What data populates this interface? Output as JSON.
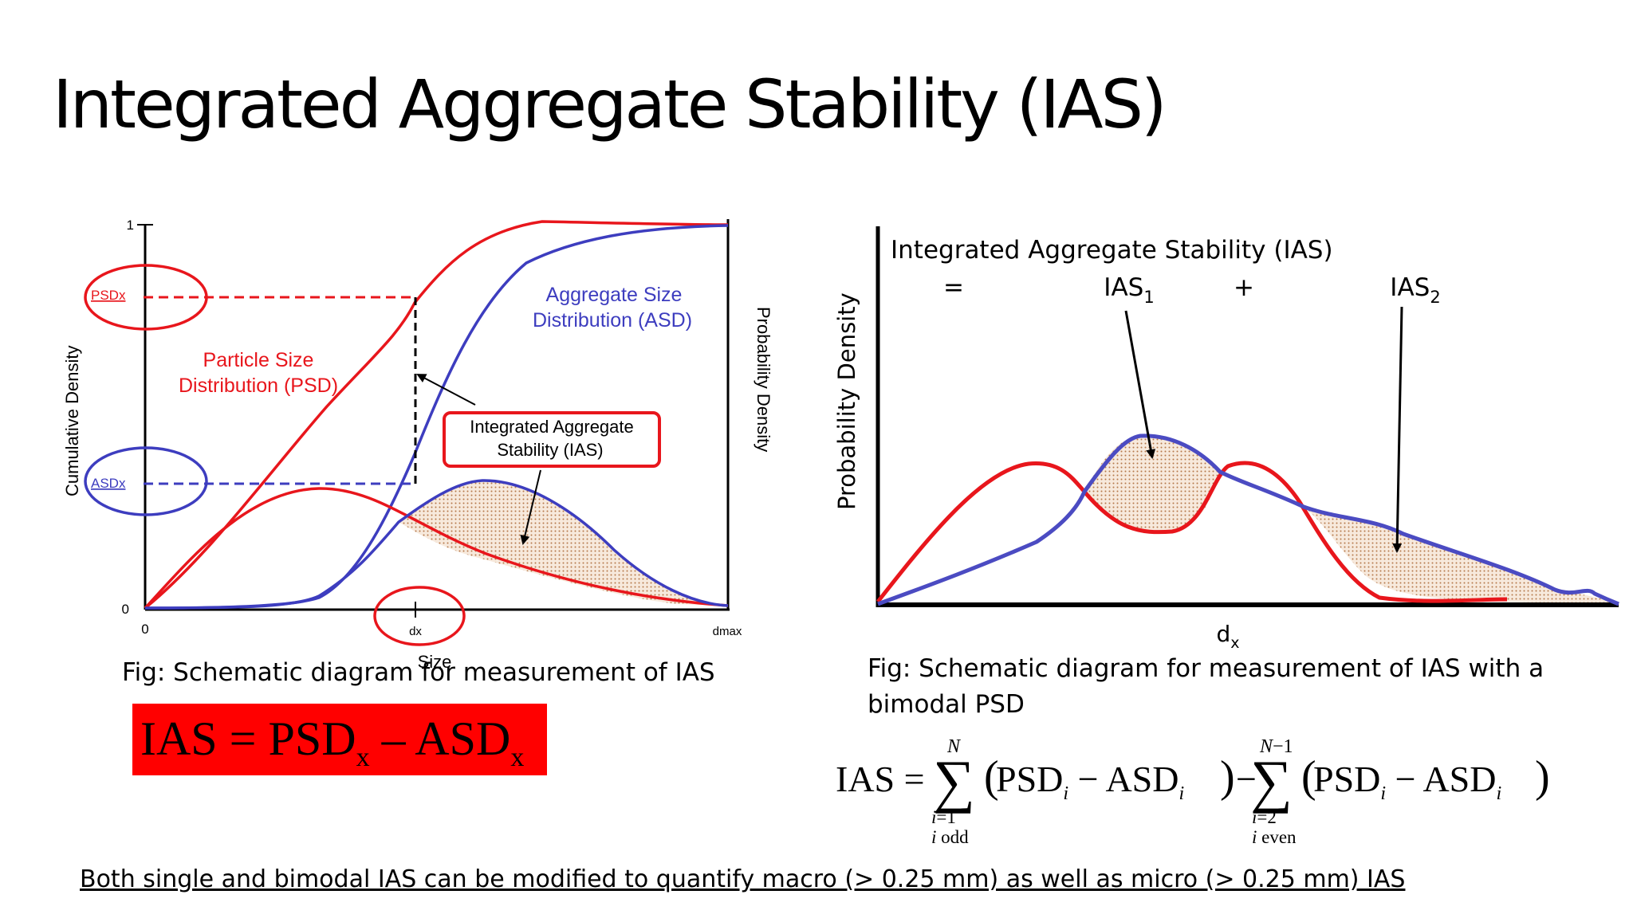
{
  "title": "Integrated Aggregate Stability (IAS)",
  "left_figure": {
    "y_label": "Cumulative Density",
    "y2_label": "Probability Density",
    "x_label": "Size",
    "y_ticks": [
      "1",
      "0"
    ],
    "x_ticks": [
      "0",
      "dx",
      "dmax"
    ],
    "psd_marker": "PSDx",
    "asd_marker": "ASDx",
    "psd_label_line1": "Particle Size",
    "psd_label_line2": "Distribution (PSD)",
    "asd_label_line1": "Aggregate Size",
    "asd_label_line2": "Distribution (ASD)",
    "ias_label_line1": "Integrated Aggregate",
    "ias_label_line2": "Stability (IAS)",
    "caption": "Fig: Schematic diagram for measurement of IAS",
    "equation": "IAS = PSDx – ASDx"
  },
  "right_figure": {
    "header": "Integrated Aggregate Stability (IAS)",
    "equals": "=",
    "ias1": "IAS1",
    "plus": "+",
    "ias2": "IAS2",
    "y_label": "Probability Density",
    "x_label": "dx",
    "caption_line1": "Fig: Schematic diagram for measurement of IAS with a",
    "caption_line2": "bimodal PSD",
    "equation": "IAS = Σ_{i=1, i odd}^{N} (PSD_i − ASD_i) − Σ_{i=2, i even}^{N−1} (PSD_i − ASD_i)"
  },
  "footnote": "Both single and bimodal IAS can be modified to quantify macro (> 0.25 mm) as well as micro (> 0.25 mm) IAS",
  "colors": {
    "psd": "#e8161c",
    "asd": "#3d3dbf",
    "fill": "#d9b08c",
    "box": "#ff0000"
  }
}
